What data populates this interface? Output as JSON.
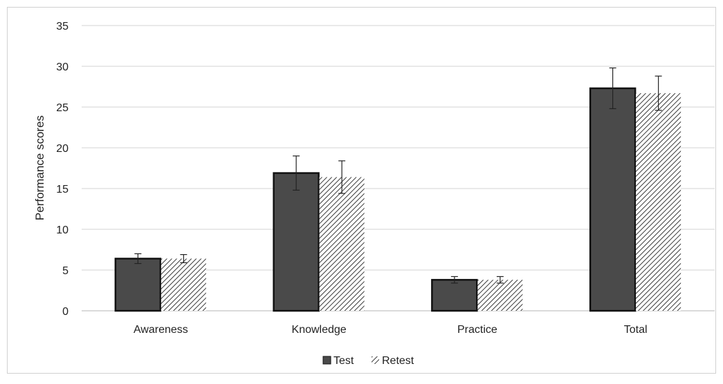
{
  "chart_data": {
    "type": "bar",
    "title": "",
    "xlabel": "",
    "ylabel": "Performance scores",
    "ylim": [
      0,
      35
    ],
    "yticks": [
      0,
      5,
      10,
      15,
      20,
      25,
      30,
      35
    ],
    "grid": true,
    "legend": "bottom-center",
    "categories": [
      "Awareness",
      "Knowledge",
      "Practice",
      "Total"
    ],
    "series": [
      {
        "name": "Test",
        "values": [
          6.4,
          16.9,
          3.8,
          27.3
        ],
        "errors": [
          0.6,
          2.1,
          0.4,
          2.5
        ],
        "color": "#4a4a4a",
        "pattern": "solid"
      },
      {
        "name": "Retest",
        "values": [
          6.4,
          16.4,
          3.8,
          26.7
        ],
        "errors": [
          0.5,
          2.0,
          0.4,
          2.1
        ],
        "color": "#4a4a4a",
        "pattern": "hatch"
      }
    ]
  }
}
